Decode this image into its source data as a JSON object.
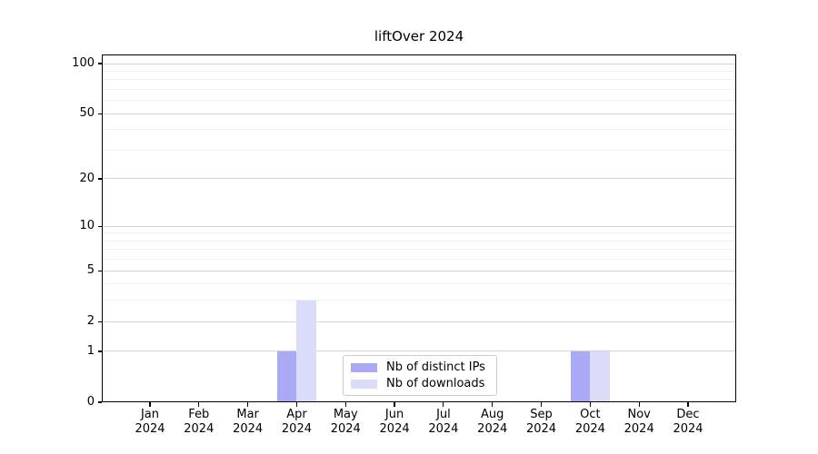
{
  "title": "liftOver 2024",
  "legend": {
    "items": [
      {
        "label": "Nb of distinct IPs"
      },
      {
        "label": "Nb of downloads"
      }
    ]
  },
  "colors": {
    "distinct_ips": "#a9a9f5",
    "downloads": "#dbdbfa",
    "grid_major": "#d4d4d4",
    "grid_minor": "#efefef",
    "axis": "#000000",
    "legend_border": "#cccccc"
  },
  "chart_data": {
    "type": "bar",
    "title": "liftOver 2024",
    "categories": [
      "Jan 2024",
      "Feb 2024",
      "Mar 2024",
      "Apr 2024",
      "May 2024",
      "Jun 2024",
      "Jul 2024",
      "Aug 2024",
      "Sep 2024",
      "Oct 2024",
      "Nov 2024",
      "Dec 2024"
    ],
    "series": [
      {
        "name": "Nb of distinct IPs",
        "color": "#a9a9f5",
        "values": [
          0,
          0,
          0,
          1,
          0,
          0,
          0,
          0,
          0,
          1,
          0,
          0
        ]
      },
      {
        "name": "Nb of downloads",
        "color": "#dbdbfa",
        "values": [
          0,
          0,
          0,
          3,
          0,
          0,
          0,
          0,
          0,
          1,
          0,
          0
        ]
      }
    ],
    "y_scale": "log10(1+v)",
    "y_ticks": [
      0,
      1,
      2,
      5,
      10,
      20,
      50,
      100
    ],
    "y_minor_gridlines": [
      3,
      4,
      6,
      7,
      8,
      9,
      30,
      40,
      60,
      70,
      80,
      90
    ],
    "ylim": [
      0,
      110
    ],
    "grid": "horizontal",
    "legend_position": "lower center inside",
    "xlabel": "",
    "ylabel": ""
  }
}
